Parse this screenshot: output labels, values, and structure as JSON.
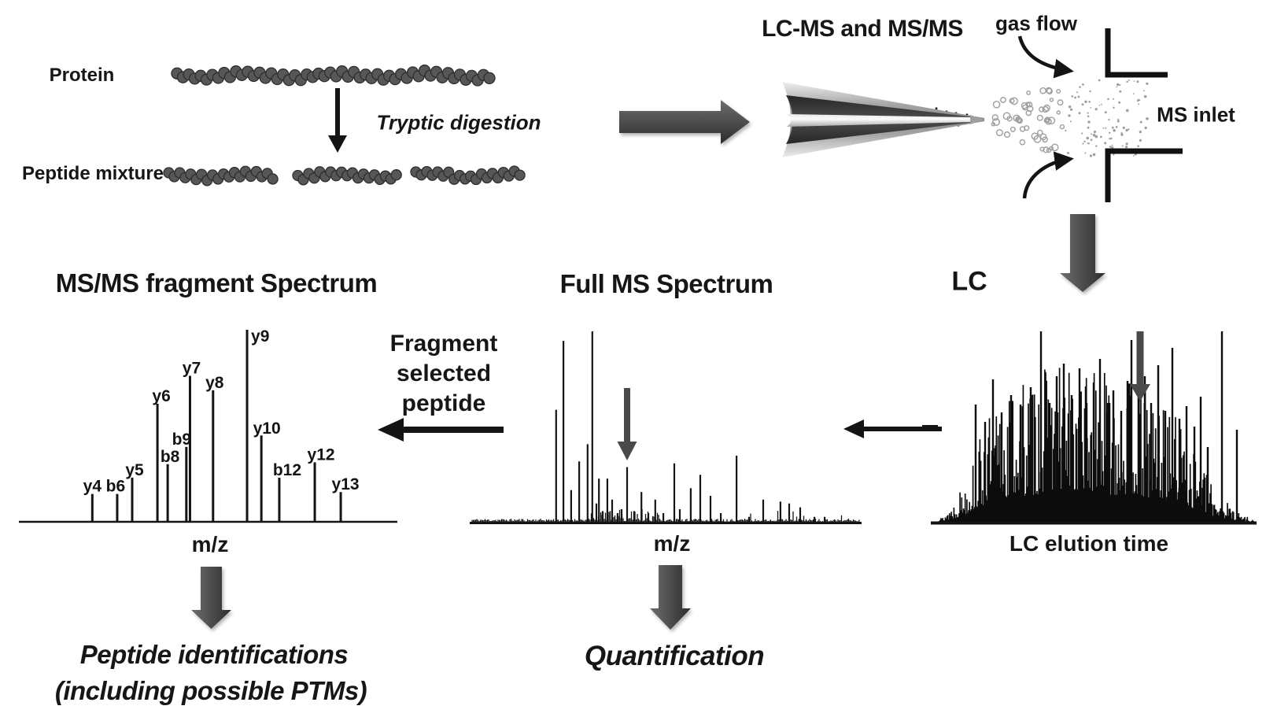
{
  "labels": {
    "protein": "Protein",
    "peptide_mixture": "Peptide mixture",
    "tryptic_digestion": "Tryptic digestion",
    "lcms_title": "LC-MS and MS/MS",
    "gas_flow": "gas flow",
    "ms_inlet": "MS inlet",
    "lc": "LC",
    "lc_xlabel": "LC elution time",
    "full_ms_title": "Full MS Spectrum",
    "full_ms_xlabel": "m/z",
    "msms_title": "MS/MS fragment Spectrum",
    "msms_xlabel": "m/z",
    "fragment_line1": "Fragment",
    "fragment_line2": "selected",
    "fragment_line3": "peptide",
    "peptide_id_line1": "Peptide identifications",
    "peptide_id_line2": "(including possible PTMs)",
    "quantification": "Quantification"
  },
  "colors": {
    "background": "#ffffff",
    "ink": "#161616",
    "block_arrow_dark": "#2f2f2f",
    "block_arrow_light": "#6a6a6a",
    "selection_arrow_gray": "#4a4a4a",
    "bead_fill": "#575757",
    "bead_stroke": "#2e2e2e",
    "droplet_gray": "#9f9f9f"
  },
  "chart_data": [
    {
      "id": "msms_fragment_spectrum",
      "type": "bar",
      "title": "MS/MS fragment Spectrum",
      "xlabel": "m/z",
      "ylim": [
        0,
        1
      ],
      "peaks": [
        {
          "label": "y4",
          "x": 0.205,
          "h": 0.145
        },
        {
          "label": "b6",
          "x": 0.273,
          "h": 0.145
        },
        {
          "label": "y5",
          "x": 0.314,
          "h": 0.23
        },
        {
          "label": "y6",
          "x": 0.383,
          "h": 0.615
        },
        {
          "label": "b8",
          "x": 0.411,
          "h": 0.3
        },
        {
          "label": "b9",
          "x": 0.462,
          "h": 0.39
        },
        {
          "label": "y7",
          "x": 0.472,
          "h": 0.76
        },
        {
          "label": "y8",
          "x": 0.535,
          "h": 0.685
        },
        {
          "label": "y9",
          "x": 0.628,
          "h": 1.0
        },
        {
          "label": "y10",
          "x": 0.667,
          "h": 0.45
        },
        {
          "label": "b12",
          "x": 0.716,
          "h": 0.23
        },
        {
          "label": "y12",
          "x": 0.813,
          "h": 0.31
        },
        {
          "label": "y13",
          "x": 0.884,
          "h": 0.155
        }
      ]
    },
    {
      "id": "full_ms_spectrum",
      "type": "bar",
      "title": "Full MS Spectrum",
      "xlabel": "m/z",
      "note": "unlabeled peptide precursor peaks; gray arrow marks peptide selected for fragmentation",
      "selected_peak_x": 0.428,
      "peaks": [
        [
          0.234,
          0.59
        ],
        [
          0.254,
          0.95
        ],
        [
          0.275,
          0.17
        ],
        [
          0.297,
          0.32
        ],
        [
          0.32,
          0.41
        ],
        [
          0.333,
          1.0
        ],
        [
          0.344,
          0.1
        ],
        [
          0.351,
          0.23
        ],
        [
          0.361,
          0.06
        ],
        [
          0.374,
          0.23
        ],
        [
          0.387,
          0.12
        ],
        [
          0.402,
          0.05
        ],
        [
          0.413,
          0.07
        ],
        [
          0.428,
          0.29
        ],
        [
          0.447,
          0.06
        ],
        [
          0.467,
          0.16
        ],
        [
          0.486,
          0.05
        ],
        [
          0.505,
          0.12
        ],
        [
          0.527,
          0.05
        ],
        [
          0.557,
          0.31
        ],
        [
          0.572,
          0.07
        ],
        [
          0.602,
          0.18
        ],
        [
          0.628,
          0.25
        ],
        [
          0.656,
          0.14
        ],
        [
          0.684,
          0.05
        ],
        [
          0.727,
          0.35
        ],
        [
          0.761,
          0.03
        ],
        [
          0.8,
          0.12
        ],
        [
          0.847,
          0.11
        ],
        [
          0.871,
          0.1
        ],
        [
          0.901,
          0.08
        ],
        [
          0.94,
          0.03
        ],
        [
          0.968,
          0.03
        ]
      ]
    },
    {
      "id": "lc_chromatogram",
      "type": "area",
      "title": "LC",
      "xlabel": "LC elution time",
      "note": "dense unresolved peptide elution profile; gray arrow marks sampled elution time",
      "arrow_x": 0.641,
      "envelope": [
        [
          0,
          0.01
        ],
        [
          0.03,
          0.03
        ],
        [
          0.07,
          0.12
        ],
        [
          0.12,
          0.3
        ],
        [
          0.17,
          0.55
        ],
        [
          0.25,
          0.72
        ],
        [
          0.33,
          0.8
        ],
        [
          0.42,
          0.82
        ],
        [
          0.5,
          0.8
        ],
        [
          0.58,
          0.78
        ],
        [
          0.65,
          0.72
        ],
        [
          0.72,
          0.6
        ],
        [
          0.78,
          0.5
        ],
        [
          0.82,
          0.35
        ],
        [
          0.86,
          0.2
        ],
        [
          0.9,
          0.12
        ],
        [
          0.93,
          0.08
        ],
        [
          0.96,
          0.04
        ],
        [
          1,
          0.01
        ]
      ]
    }
  ]
}
